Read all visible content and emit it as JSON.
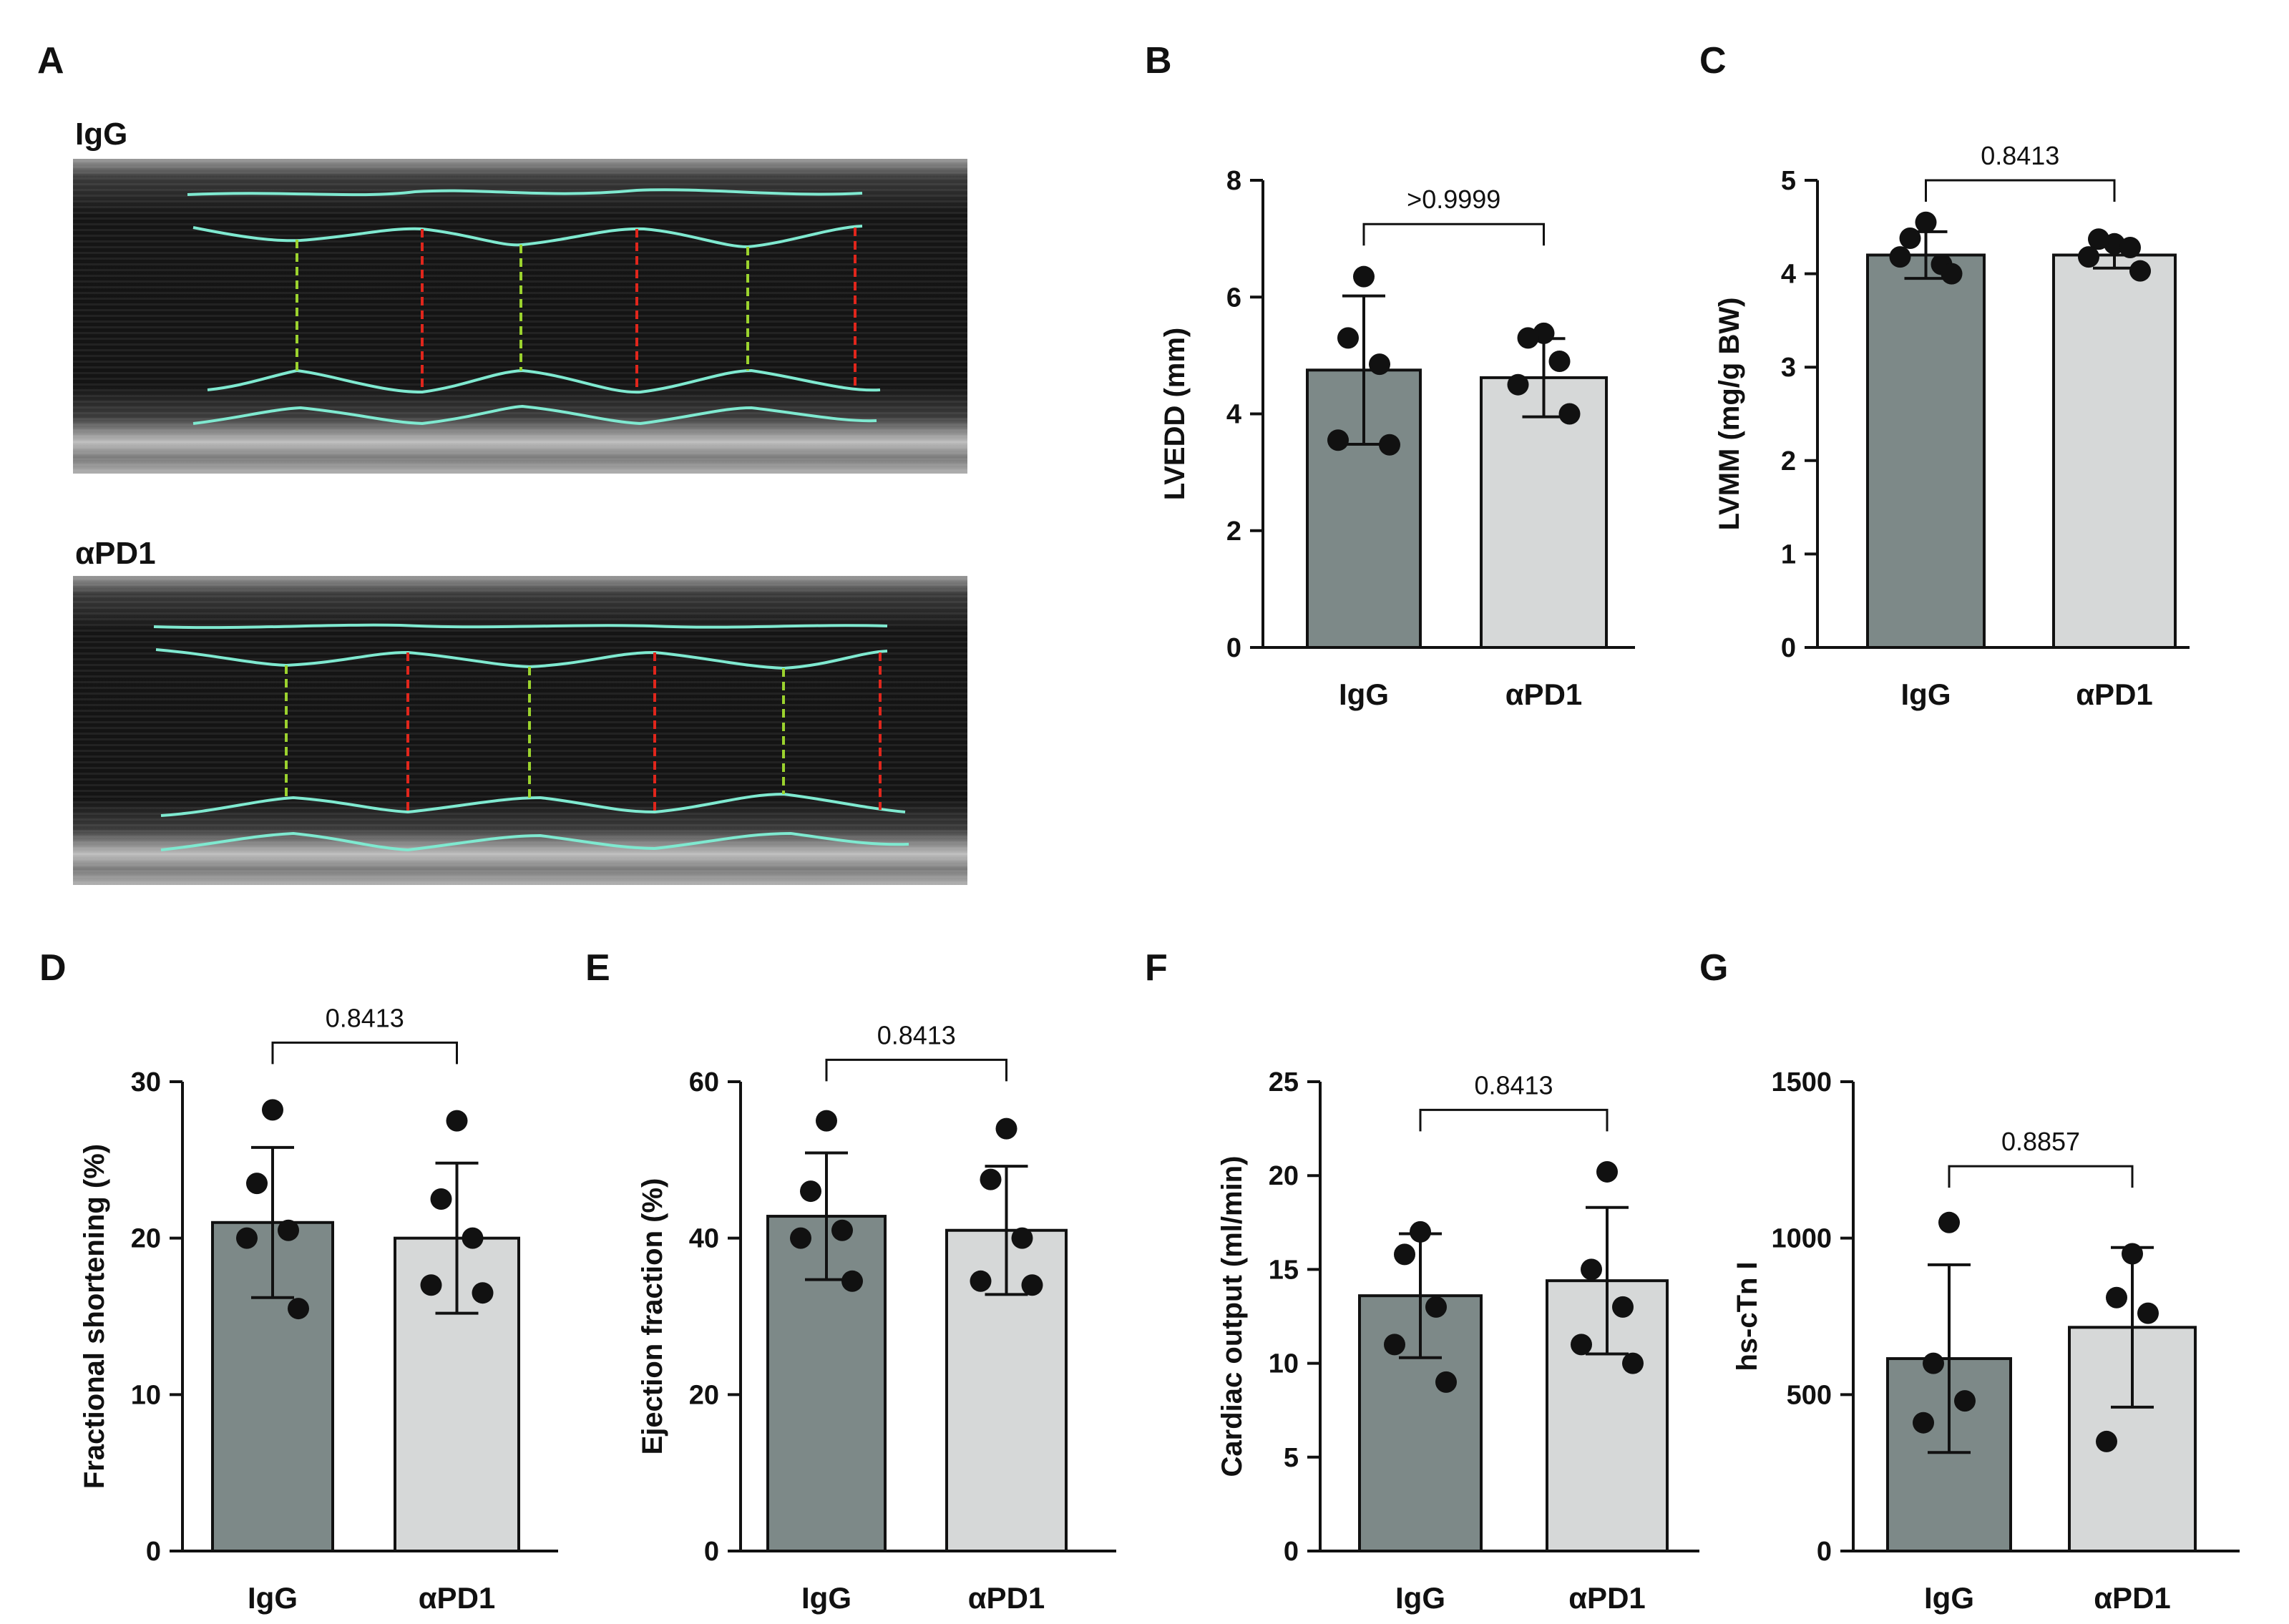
{
  "colors": {
    "igg_bar": "#7d8988",
    "apd1_bar": "#d6d8d8",
    "trace": "#7fe9d0",
    "systole_line": "#9bd22e",
    "diastole_line": "#e0261c",
    "echo_bg": "#161616"
  },
  "panel_a": {
    "letter": "A",
    "images": [
      {
        "label": "IgG"
      },
      {
        "label": "αPD1"
      }
    ]
  },
  "chart_data": [
    {
      "panel": "B",
      "type": "bar",
      "categories": [
        "IgG",
        "αPD1"
      ],
      "values": [
        4.75,
        4.62
      ],
      "error": [
        1.27,
        0.67
      ],
      "points": [
        [
          6.35,
          5.3,
          4.85,
          3.55,
          3.47
        ],
        [
          5.38,
          5.3,
          4.9,
          4.5,
          4.0
        ]
      ],
      "ylabel": "LVEDD (mm)",
      "ylim": [
        0,
        8
      ],
      "yticks": [
        0,
        2,
        4,
        6,
        8
      ],
      "pvalue": ">0.9999",
      "bracket_y": 7.25
    },
    {
      "panel": "C",
      "type": "bar",
      "categories": [
        "IgG",
        "αPD1"
      ],
      "values": [
        4.2,
        4.2
      ],
      "error": [
        0.25,
        0.14
      ],
      "points": [
        [
          4.55,
          4.38,
          4.1,
          4.18,
          4.0
        ],
        [
          4.32,
          4.37,
          4.28,
          4.18,
          4.03
        ]
      ],
      "ylabel": "LVMM  (mg/g BW)",
      "ylim": [
        0,
        5
      ],
      "yticks": [
        0,
        1,
        2,
        3,
        4,
        5
      ],
      "pvalue": "0.8413",
      "bracket_y": 5.0
    },
    {
      "panel": "D",
      "type": "bar",
      "categories": [
        "IgG",
        "αPD1"
      ],
      "values": [
        21.0,
        20.0
      ],
      "error": [
        4.8,
        4.8
      ],
      "points": [
        [
          28.2,
          23.5,
          20.5,
          20.0,
          15.5
        ],
        [
          27.5,
          22.5,
          20.0,
          17.0,
          16.5
        ]
      ],
      "ylabel": "Fractional shortening (%)",
      "ylim": [
        0,
        30
      ],
      "yticks": [
        0,
        10,
        20,
        30
      ],
      "pvalue": "0.8413",
      "bracket_y": 32.5
    },
    {
      "panel": "E",
      "type": "bar",
      "categories": [
        "IgG",
        "αPD1"
      ],
      "values": [
        42.8,
        41.0
      ],
      "error": [
        8.1,
        8.2
      ],
      "points": [
        [
          55.0,
          46.0,
          41.0,
          40.0,
          34.5
        ],
        [
          54.0,
          47.5,
          40.0,
          34.5,
          34.0
        ]
      ],
      "ylabel": "Ejection fraction (%)",
      "ylim": [
        0,
        60
      ],
      "yticks": [
        0,
        20,
        40,
        60
      ],
      "pvalue": "0.8413",
      "bracket_y": 62.8
    },
    {
      "panel": "F",
      "type": "bar",
      "categories": [
        "IgG",
        "αPD1"
      ],
      "values": [
        13.6,
        14.4
      ],
      "error": [
        3.3,
        3.9
      ],
      "points": [
        [
          17.0,
          15.8,
          13.0,
          11.0,
          9.0
        ],
        [
          20.2,
          15.0,
          13.0,
          11.0,
          10.0
        ]
      ],
      "ylabel": "Cardiac output (ml/min)",
      "ylim": [
        0,
        25
      ],
      "yticks": [
        0,
        5,
        10,
        15,
        20,
        25
      ],
      "pvalue": "0.8413",
      "bracket_y": 23.5
    },
    {
      "panel": "G",
      "type": "bar",
      "categories": [
        "IgG",
        "αPD1"
      ],
      "values": [
        615,
        715
      ],
      "error": [
        300,
        255
      ],
      "points": [
        [
          1050,
          600,
          480,
          410
        ],
        [
          950,
          810,
          760,
          350
        ]
      ],
      "ylabel": "hs-cTn I",
      "ylim": [
        0,
        1500
      ],
      "yticks": [
        0,
        500,
        1000,
        1500
      ],
      "pvalue": "0.8857",
      "bracket_y": 1230
    }
  ]
}
